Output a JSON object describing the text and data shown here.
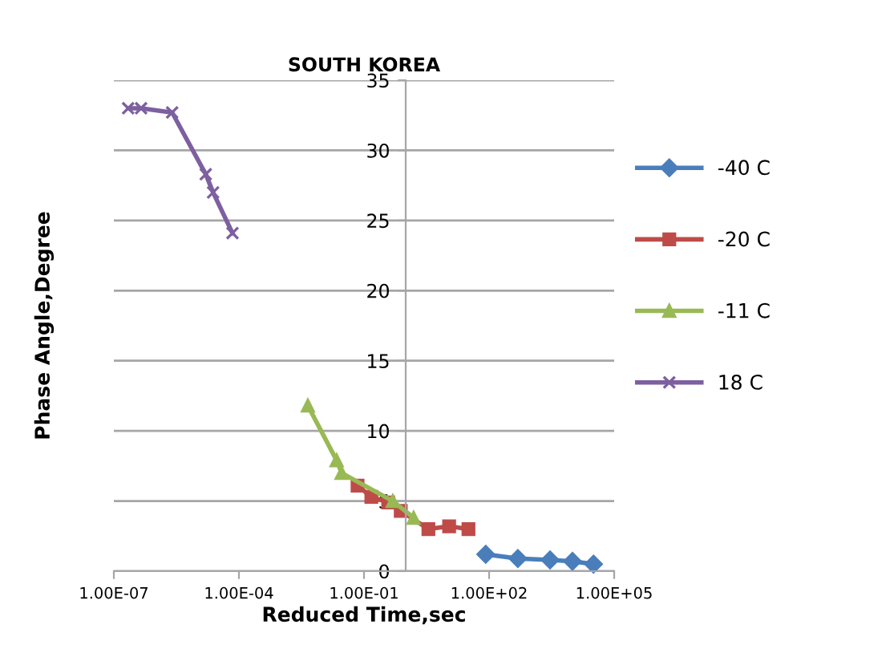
{
  "chart_data": {
    "type": "line",
    "title": "SOUTH KOREA",
    "xlabel": "Reduced Time,sec",
    "ylabel": "Phase Angle,Degree",
    "log": "x",
    "xlim": [
      1e-07,
      100000.0
    ],
    "xticks": [
      {
        "value": 1e-07,
        "label": "1.00E-07"
      },
      {
        "value": 0.0001,
        "label": "1.00E-04"
      },
      {
        "value": 0.1,
        "label": "1.00E-01"
      },
      {
        "value": 100,
        "label": "1.00E+02"
      },
      {
        "value": 100000.0,
        "label": "1.00E+05"
      }
    ],
    "ylim": [
      0,
      35
    ],
    "yticks": [
      0,
      5,
      10,
      15,
      20,
      25,
      30,
      35
    ],
    "grid": "y",
    "legend": "right",
    "series": [
      {
        "name": "-40 C",
        "color": "#4a7ebb",
        "marker": "diamond",
        "x": [
          83,
          490,
          2900,
          10000,
          32000
        ],
        "values": [
          1.2,
          0.9,
          0.8,
          0.7,
          0.5
        ]
      },
      {
        "name": "-20 C",
        "color": "#be4b48",
        "marker": "square",
        "x": [
          0.07,
          0.15,
          0.38,
          0.76,
          3.5,
          11,
          32
        ],
        "values": [
          6.1,
          5.3,
          4.9,
          4.3,
          3.0,
          3.2,
          3.0
        ]
      },
      {
        "name": "-11 C",
        "color": "#98b954",
        "marker": "triangle",
        "x": [
          0.0045,
          0.022,
          0.029,
          0.49,
          1.55
        ],
        "values": [
          11.8,
          7.9,
          7.0,
          5.0,
          3.8
        ]
      },
      {
        "name": "18 C",
        "color": "#7d60a0",
        "marker": "cross",
        "x": [
          2.2e-07,
          4.5e-07,
          2.5e-06,
          1.6e-05,
          2.4e-05,
          7e-05
        ],
        "values": [
          33,
          33,
          32.7,
          28.3,
          27,
          24.1
        ]
      }
    ]
  }
}
